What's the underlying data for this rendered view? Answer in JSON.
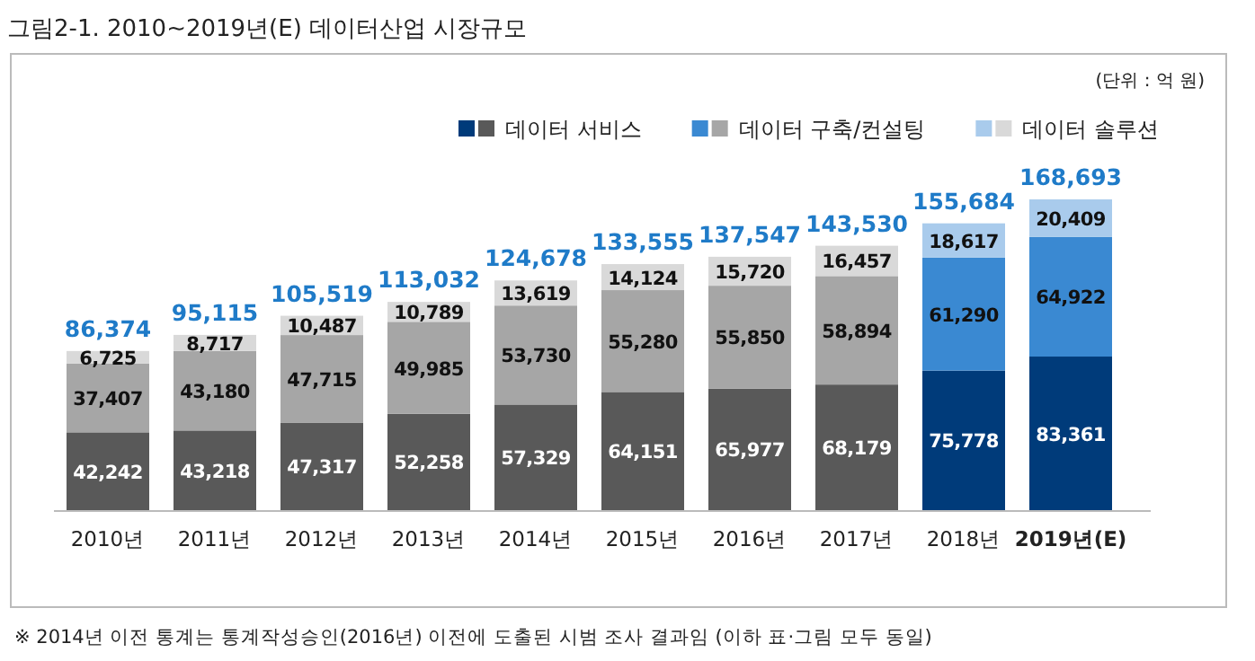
{
  "chart_data": {
    "type": "bar",
    "title": "그림2-1. 2010~2019년(E) 데이터산업 시장규모",
    "stacked": true,
    "legend": "top right",
    "categories": [
      "2010년",
      "2011년",
      "2012년",
      "2013년",
      "2014년",
      "2015년",
      "2016년",
      "2017년",
      "2018년",
      "**2019년(E)**"
    ],
    "series": [
      {
        "name": "데이터 서비스",
        "colors": [
          "#595959",
          "#595959",
          "#595959",
          "#595959",
          "#595959",
          "#595959",
          "#595959",
          "#595959",
          "#003b7a",
          "#003b7a"
        ],
        "values": [
          42242,
          43218,
          47317,
          52258,
          57329,
          64151,
          65977,
          68179,
          75778,
          83361
        ],
        "value_labels": [
          "42,242",
          "43,218",
          "47,317",
          "52,258",
          "57,329",
          "64,151",
          "65,977",
          "68,179",
          "75,778",
          "83,361"
        ]
      },
      {
        "name": "데이터 구축/컨설팅",
        "colors": [
          "#a6a6a6",
          "#a6a6a6",
          "#a6a6a6",
          "#a6a6a6",
          "#a6a6a6",
          "#a6a6a6",
          "#a6a6a6",
          "#a6a6a6",
          "#3a89d2",
          "#3a89d2"
        ],
        "values": [
          37407,
          43180,
          47715,
          49985,
          53730,
          55280,
          55850,
          58894,
          61290,
          64922
        ],
        "value_labels": [
          "37,407",
          "43,180",
          "47,715",
          "49,985",
          "53,730",
          "55,280",
          "55,850",
          "58,894",
          "61,290",
          "64,922"
        ]
      },
      {
        "name": "데이터 솔루션",
        "colors": [
          "#d9d9d9",
          "#d9d9d9",
          "#d9d9d9",
          "#d9d9d9",
          "#d9d9d9",
          "#d9d9d9",
          "#d9d9d9",
          "#d9d9d9",
          "#a9cbec",
          "#a9cbec"
        ],
        "values": [
          6725,
          8717,
          10487,
          10789,
          13619,
          14124,
          15720,
          16457,
          18617,
          20409
        ],
        "value_labels": [
          "6,725",
          "8,717",
          "10,487",
          "10,789",
          "13,619",
          "14,124",
          "15,720",
          "16,457",
          "18,617",
          "20,409"
        ]
      }
    ],
    "totals": [
      "86,374",
      "95,115",
      "105,519",
      "113,032",
      "124,678",
      "133,555",
      "137,547",
      "143,530",
      "155,684",
      "168,693"
    ],
    "annotations": [
      "(단위 : 억 원)",
      "※ 2014년 이전 통계는 통계작성승인(2016년) 이전에 도출된 시범 조사 결과임 (이하 표·그림 모두 동일)"
    ]
  }
}
